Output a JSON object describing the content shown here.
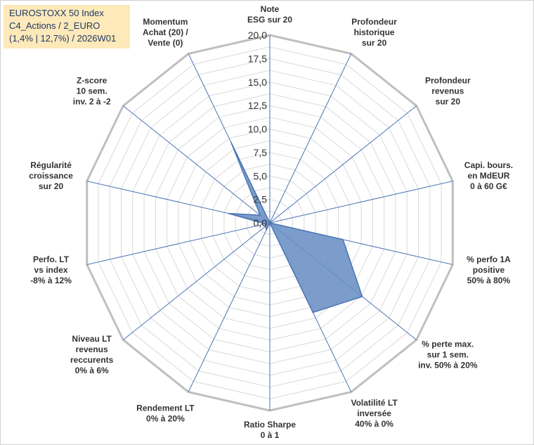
{
  "title_lines": [
    "EUROSTOXX 50 Index",
    "C4_Actions / 2_EURO",
    "(1,4% | 12,7%) / 2026W01"
  ],
  "colors": {
    "fill": "#6a8fc4",
    "stroke": "#4a74b4",
    "axis": "#4a74b4",
    "grid": "#d9d9d9",
    "outer": "#bfbfbf",
    "title_bg": "#fde9b9",
    "title_text": "#1f3864"
  },
  "chart_data": {
    "type": "radar",
    "title": "EUROSTOXX 50 Index C4_Actions / 2_EURO (1,4% | 12,7%) / 2026W01",
    "rlim": [
      0,
      20
    ],
    "grid": true,
    "tick_labels": [
      "0,0",
      "2,5",
      "5,0",
      "7,5",
      "10,0",
      "12,5",
      "15,0",
      "17,5",
      "20,0"
    ],
    "axes": [
      {
        "label": [
          "Note",
          "ESG sur 20"
        ],
        "value": 0
      },
      {
        "label": [
          "Profondeur",
          "historique",
          "sur 20"
        ],
        "value": 0
      },
      {
        "label": [
          "Profondeur",
          "revenus",
          "sur 20"
        ],
        "value": 0
      },
      {
        "label": [
          "Capi. bours.",
          "en MdEUR",
          "0 à 60 G€"
        ],
        "value": 0
      },
      {
        "label": [
          "% perfo 1A",
          "positive",
          "50% à 80%"
        ],
        "value": 8
      },
      {
        "label": [
          "% perte max.",
          "sur 1 sem.",
          "inv. 50% à 20%"
        ],
        "value": 12.6
      },
      {
        "label": [
          "Volatilité LT",
          "inversée",
          "40% à 0%"
        ],
        "value": 10.6
      },
      {
        "label": [
          "Ratio Sharpe",
          "0 à 1"
        ],
        "value": 0
      },
      {
        "label": [
          "Rendement LT",
          "0% à 20%"
        ],
        "value": 0.8
      },
      {
        "label": [
          "Niveau LT",
          "revenus",
          "reccurents",
          "0% à 6%"
        ],
        "value": 0.6
      },
      {
        "label": [
          "Perfo. LT",
          "vs index",
          "-8% à 12%"
        ],
        "value": 0.5
      },
      {
        "label": [
          "Régularité",
          "croissance",
          "sur 20"
        ],
        "value": 4.5
      },
      {
        "label": [
          "Z-score",
          "10 sem.",
          "inv. 2 à -2"
        ],
        "value": 1.3
      },
      {
        "label": [
          "Momentum",
          "Achat (20) /",
          "Vente (0)"
        ],
        "value": 9.5
      }
    ]
  }
}
